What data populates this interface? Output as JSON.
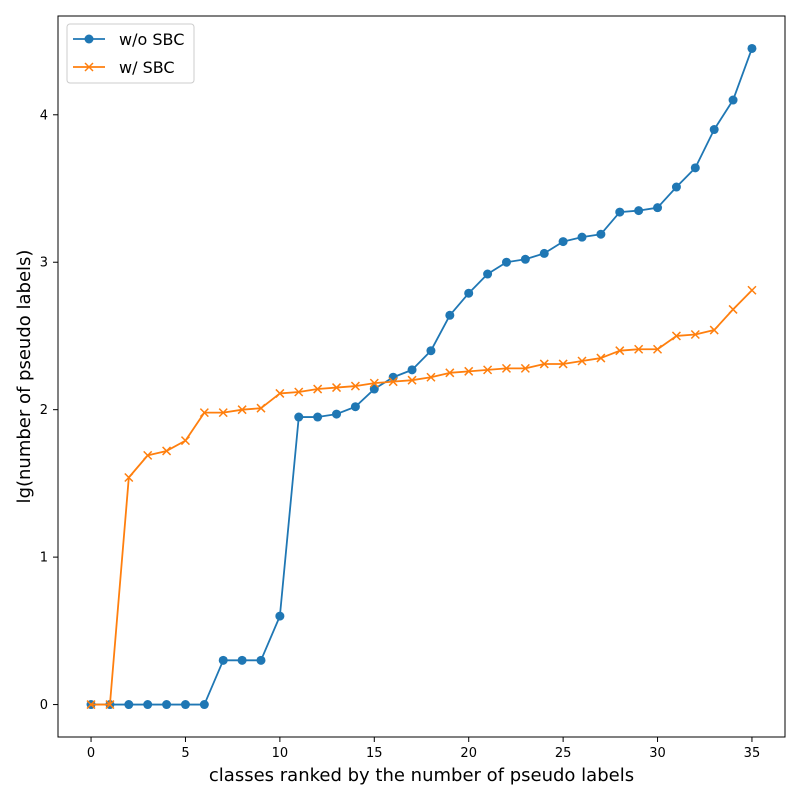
{
  "chart_data": {
    "type": "line",
    "title": "",
    "xlabel": "classes ranked by the number of pseudo labels",
    "ylabel": "lg(number of pseudo labels)",
    "xlim": [
      -1.75,
      36.75
    ],
    "ylim": [
      -0.22,
      4.67
    ],
    "xticks": [
      0,
      5,
      10,
      15,
      20,
      25,
      30,
      35
    ],
    "yticks": [
      0,
      1,
      2,
      3,
      4
    ],
    "grid": false,
    "legend_position": "top-left",
    "x": [
      0,
      1,
      2,
      3,
      4,
      5,
      6,
      7,
      8,
      9,
      10,
      11,
      12,
      13,
      14,
      15,
      16,
      17,
      18,
      19,
      20,
      21,
      22,
      23,
      24,
      25,
      26,
      27,
      28,
      29,
      30,
      31,
      32,
      33,
      34,
      35
    ],
    "series": [
      {
        "name": "w/o SBC",
        "color": "#1f77b4",
        "marker": "circle",
        "values": [
          0,
          0,
          0,
          0,
          0,
          0,
          0,
          0.3,
          0.3,
          0.3,
          0.6,
          1.95,
          1.95,
          1.97,
          2.02,
          2.14,
          2.22,
          2.27,
          2.4,
          2.64,
          2.79,
          2.92,
          3.0,
          3.02,
          3.06,
          3.14,
          3.17,
          3.19,
          3.34,
          3.35,
          3.37,
          3.51,
          3.64,
          3.9,
          4.1,
          4.45
        ]
      },
      {
        "name": "w/ SBC",
        "color": "#ff7f0e",
        "marker": "x",
        "values": [
          0,
          0,
          1.54,
          1.69,
          1.72,
          1.79,
          1.98,
          1.98,
          2.0,
          2.01,
          2.11,
          2.12,
          2.14,
          2.15,
          2.16,
          2.18,
          2.19,
          2.2,
          2.22,
          2.25,
          2.26,
          2.27,
          2.28,
          2.28,
          2.31,
          2.31,
          2.33,
          2.35,
          2.4,
          2.41,
          2.41,
          2.5,
          2.51,
          2.54,
          2.68,
          2.81
        ]
      }
    ]
  }
}
